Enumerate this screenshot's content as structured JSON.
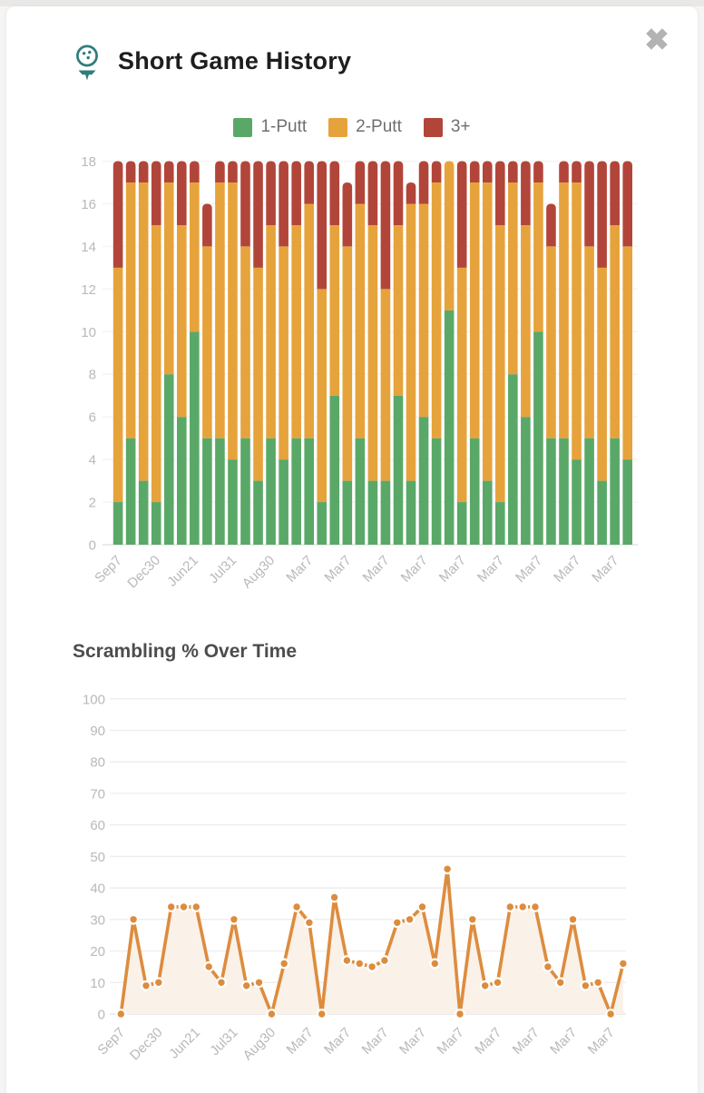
{
  "header": {
    "title": "Short Game History",
    "icon": "golf-ball-on-tee-icon",
    "icon_color": "#2e7d7c",
    "close_glyph": "✖"
  },
  "legend": {
    "items": [
      {
        "label": "1-Putt",
        "color": "#5aa868"
      },
      {
        "label": "2-Putt",
        "color": "#e6a33c"
      },
      {
        "label": "3+",
        "color": "#b2453a"
      }
    ]
  },
  "chart_data": [
    {
      "type": "bar",
      "stacked": true,
      "title": "",
      "x_tick_labels": [
        "Sep7",
        "Dec30",
        "Jun21",
        "Jul31",
        "Aug30",
        "Mar7",
        "Mar7",
        "Mar7",
        "Mar7",
        "Mar7",
        "Mar7",
        "Mar7",
        "Mar7",
        "Mar7"
      ],
      "tick_every": 3,
      "ylim": [
        0,
        18
      ],
      "ytick_step": 2,
      "grid": true,
      "legend_position": "top-center",
      "series": [
        {
          "name": "1-Putt",
          "color": "#5aa868",
          "values": [
            2,
            5,
            3,
            2,
            8,
            6,
            10,
            5,
            5,
            4,
            5,
            3,
            5,
            4,
            5,
            5,
            2,
            7,
            3,
            5,
            3,
            3,
            7,
            3,
            6,
            5,
            11,
            2,
            5,
            3,
            2,
            8,
            6,
            10,
            5,
            5,
            4,
            5,
            3,
            5,
            4
          ]
        },
        {
          "name": "2-Putt",
          "color": "#e6a33c",
          "values": [
            11,
            12,
            14,
            13,
            9,
            9,
            7,
            9,
            12,
            13,
            9,
            10,
            10,
            10,
            10,
            11,
            10,
            8,
            11,
            11,
            12,
            9,
            8,
            13,
            10,
            12,
            7,
            11,
            12,
            14,
            13,
            9,
            9,
            7,
            9,
            12,
            13,
            9,
            10,
            10,
            10
          ]
        },
        {
          "name": "3+",
          "color": "#b2453a",
          "values": [
            5,
            1,
            1,
            3,
            1,
            3,
            1,
            2,
            1,
            1,
            4,
            5,
            3,
            4,
            3,
            2,
            6,
            3,
            3,
            2,
            3,
            6,
            3,
            1,
            2,
            1,
            0,
            5,
            1,
            1,
            3,
            1,
            3,
            1,
            2,
            1,
            1,
            4,
            5,
            3,
            4
          ]
        }
      ]
    },
    {
      "type": "line",
      "title": "Scrambling % Over Time",
      "x_tick_labels": [
        "Sep7",
        "Dec30",
        "Jun21",
        "Jul31",
        "Aug30",
        "Mar7",
        "Mar7",
        "Mar7",
        "Mar7",
        "Mar7",
        "Mar7",
        "Mar7",
        "Mar7",
        "Mar7"
      ],
      "tick_every": 3,
      "ylim": [
        0,
        100
      ],
      "ytick_step": 10,
      "grid": true,
      "point_style": "filled-circle-white-border",
      "series": [
        {
          "name": "Scrambling %",
          "color": "#dd8c3e",
          "fill": "#faf1e9",
          "values": [
            0,
            30,
            9,
            10,
            34,
            34,
            34,
            15,
            10,
            30,
            9,
            10,
            0,
            16,
            34,
            29,
            0,
            37,
            17,
            16,
            15,
            17,
            29,
            30,
            34,
            16,
            46,
            0,
            30,
            9,
            10,
            34,
            34,
            34,
            15,
            10,
            30,
            9,
            10,
            0,
            16
          ]
        }
      ]
    }
  ]
}
